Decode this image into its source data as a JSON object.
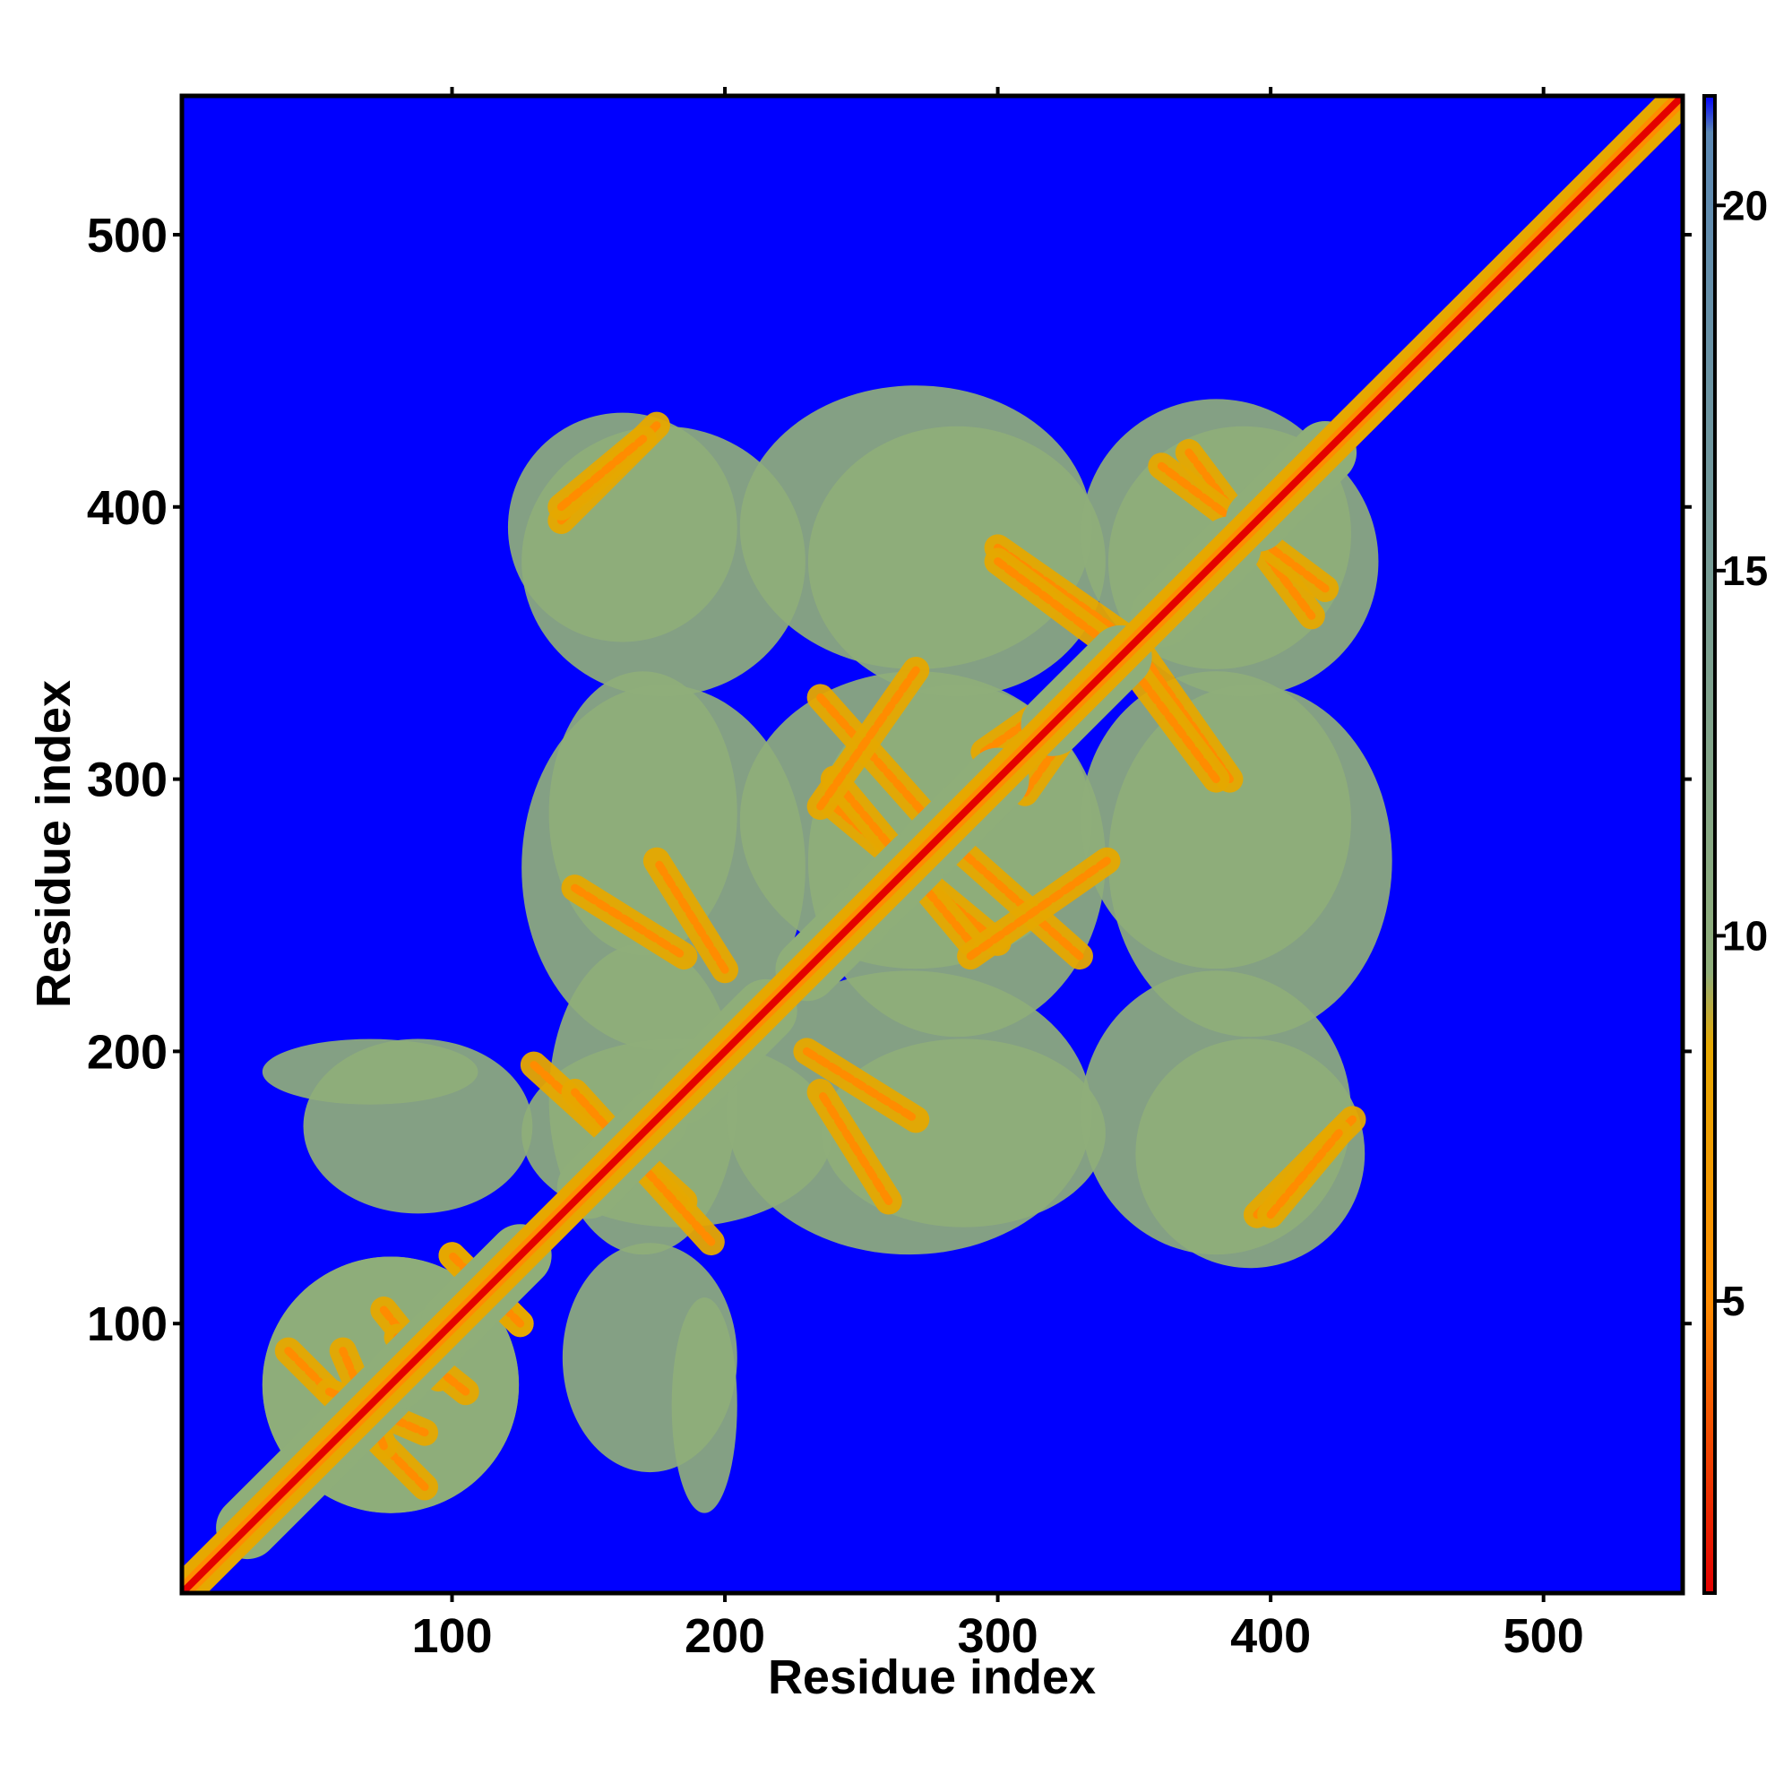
{
  "chart_data": {
    "type": "heatmap",
    "title": "",
    "xlabel": "Residue index",
    "ylabel": "Residue index",
    "xlim": [
      1,
      551
    ],
    "ylim": [
      1,
      551
    ],
    "xticks": [
      100,
      200,
      300,
      400,
      500
    ],
    "yticks": [
      100,
      200,
      300,
      400,
      500
    ],
    "colorbar": {
      "min": 1,
      "max": 21.5,
      "ticks": [
        5,
        10,
        15,
        20
      ],
      "colors": [
        "#e30000",
        "#ff8c00",
        "#e6a800",
        "#8fae79",
        "#5b88b4",
        "#0000ff"
      ],
      "stops": [
        1,
        5,
        8.5,
        9.5,
        21,
        21.5
      ]
    },
    "background_value": 21.5,
    "diagonal_value": 1,
    "helices": [
      [
        25,
        60
      ],
      [
        60,
        75
      ],
      [
        80,
        95
      ],
      [
        100,
        125
      ],
      [
        150,
        175
      ],
      [
        185,
        215
      ],
      [
        230,
        250
      ],
      [
        255,
        270
      ],
      [
        275,
        300
      ],
      [
        320,
        345
      ],
      [
        360,
        385
      ],
      [
        395,
        420
      ]
    ],
    "contact_blobs": [
      {
        "x": [
          30,
          125
        ],
        "y": [
          30,
          125
        ],
        "value": 12
      },
      {
        "x": [
          125,
          240
        ],
        "y": [
          135,
          205
        ],
        "value": 14
      },
      {
        "x": [
          235,
          340
        ],
        "y": [
          135,
          205
        ],
        "value": 14
      },
      {
        "x": [
          350,
          435
        ],
        "y": [
          120,
          205
        ],
        "value": 14
      },
      {
        "x": [
          125,
          230
        ],
        "y": [
          200,
          335
        ],
        "value": 14
      },
      {
        "x": [
          230,
          340
        ],
        "y": [
          205,
          335
        ],
        "value": 14
      },
      {
        "x": [
          340,
          445
        ],
        "y": [
          205,
          335
        ],
        "value": 14
      },
      {
        "x": [
          125,
          230
        ],
        "y": [
          330,
          430
        ],
        "value": 14
      },
      {
        "x": [
          230,
          340
        ],
        "y": [
          330,
          430
        ],
        "value": 14
      },
      {
        "x": [
          340,
          440
        ],
        "y": [
          330,
          430
        ],
        "value": 14
      },
      {
        "x": [
          30,
          110
        ],
        "y": [
          180,
          205
        ],
        "value": 17
      },
      {
        "x": [
          140,
          205
        ],
        "y": [
          45,
          130
        ],
        "value": 17
      }
    ],
    "contact_bands": [
      {
        "from": [
          130,
          195
        ],
        "to": [
          185,
          145
        ],
        "value": 5
      },
      {
        "from": [
          145,
          260
        ],
        "to": [
          185,
          235
        ],
        "value": 5
      },
      {
        "from": [
          230,
          200
        ],
        "to": [
          270,
          175
        ],
        "value": 5
      },
      {
        "from": [
          235,
          330
        ],
        "to": [
          275,
          285
        ],
        "value": 5
      },
      {
        "from": [
          240,
          290
        ],
        "to": [
          300,
          240
        ],
        "value": 5
      },
      {
        "from": [
          290,
          235
        ],
        "to": [
          340,
          270
        ],
        "value": 5
      },
      {
        "from": [
          295,
          310
        ],
        "to": [
          345,
          345
        ],
        "value": 5
      },
      {
        "from": [
          300,
          385
        ],
        "to": [
          350,
          350
        ],
        "value": 5
      },
      {
        "from": [
          350,
          340
        ],
        "to": [
          380,
          300
        ],
        "value": 5
      },
      {
        "from": [
          370,
          420
        ],
        "to": [
          415,
          360
        ],
        "value": 5
      },
      {
        "from": [
          395,
          140
        ],
        "to": [
          430,
          175
        ],
        "value": 5
      },
      {
        "from": [
          140,
          400
        ],
        "to": [
          170,
          425
        ],
        "value": 5
      },
      {
        "from": [
          40,
          90
        ],
        "to": [
          70,
          60
        ],
        "value": 5
      },
      {
        "from": [
          75,
          105
        ],
        "to": [
          95,
          80
        ],
        "value": 5
      },
      {
        "from": [
          55,
          75
        ],
        "to": [
          90,
          60
        ],
        "value": 5
      },
      {
        "from": [
          100,
          125
        ],
        "to": [
          125,
          100
        ],
        "value": 5
      }
    ]
  }
}
